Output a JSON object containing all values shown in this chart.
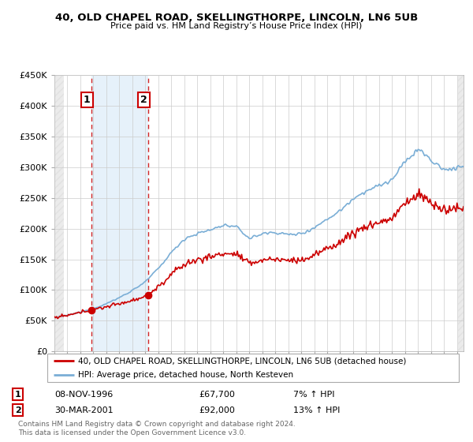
{
  "title": "40, OLD CHAPEL ROAD, SKELLINGTHORPE, LINCOLN, LN6 5UB",
  "subtitle": "Price paid vs. HM Land Registry’s House Price Index (HPI)",
  "legend_line1": "40, OLD CHAPEL ROAD, SKELLINGTHORPE, LINCOLN, LN6 5UB (detached house)",
  "legend_line2": "HPI: Average price, detached house, North Kesteven",
  "annotation1_date": "08-NOV-1996",
  "annotation1_price": "£67,700",
  "annotation1_hpi": "7% ↑ HPI",
  "annotation2_date": "30-MAR-2001",
  "annotation2_price": "£92,000",
  "annotation2_hpi": "13% ↑ HPI",
  "footer": "Contains HM Land Registry data © Crown copyright and database right 2024.\nThis data is licensed under the Open Government Licence v3.0.",
  "red_color": "#cc0000",
  "blue_color": "#7aaed6",
  "blue_fill_color": "#d6e8f7",
  "hatch_color": "#c8c8c8",
  "ylim": [
    0,
    450000
  ],
  "yticks": [
    0,
    50000,
    100000,
    150000,
    200000,
    250000,
    300000,
    350000,
    400000,
    450000
  ],
  "ytick_labels": [
    "£0",
    "£50K",
    "£100K",
    "£150K",
    "£200K",
    "£250K",
    "£300K",
    "£350K",
    "£400K",
    "£450K"
  ],
  "sale1_x": 1996.86,
  "sale1_y": 67700,
  "sale2_x": 2001.24,
  "sale2_y": 92000,
  "xmin": 1994.0,
  "xmax": 2025.5
}
